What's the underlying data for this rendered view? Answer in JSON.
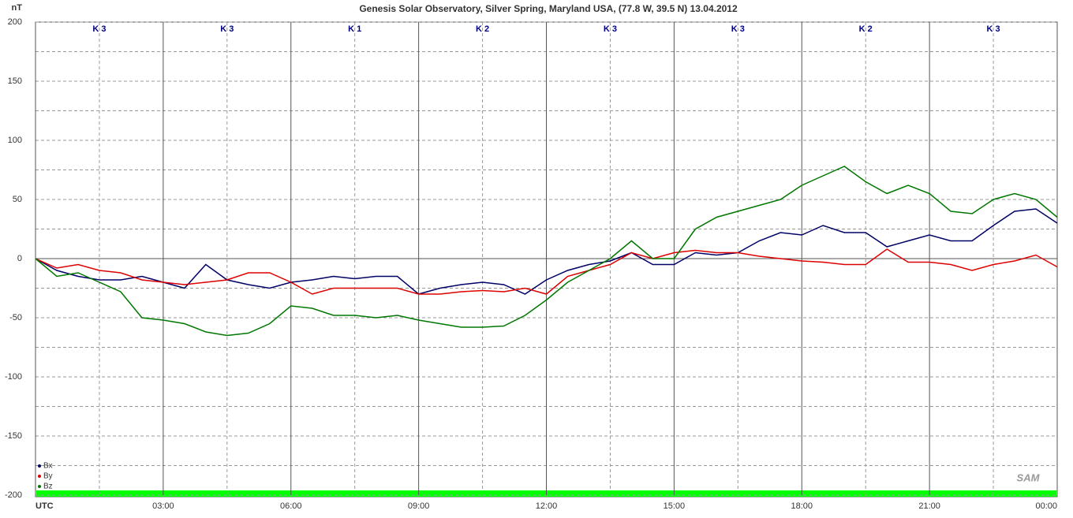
{
  "chart_data": {
    "type": "line",
    "title": "Genesis Solar Observatory, Silver Spring, Maryland USA, (77.8 W, 39.5 N)  13.04.2012",
    "y_label": "nT",
    "logo": "SAM",
    "xlim": [
      0,
      24
    ],
    "xticks": [
      {
        "value": 0,
        "label": "UTC"
      },
      {
        "value": 3,
        "label": "03:00"
      },
      {
        "value": 6,
        "label": "06:00"
      },
      {
        "value": 9,
        "label": "09:00"
      },
      {
        "value": 12,
        "label": "12:00"
      },
      {
        "value": 15,
        "label": "15:00"
      },
      {
        "value": 18,
        "label": "18:00"
      },
      {
        "value": 21,
        "label": "21:00"
      },
      {
        "value": 24,
        "label": "00:00"
      }
    ],
    "xminor": [
      1.5,
      4.5,
      7.5,
      10.5,
      13.5,
      16.5,
      19.5,
      22.5
    ],
    "ylim": [
      -200,
      200
    ],
    "yticks": [
      -200,
      -150,
      -100,
      -50,
      0,
      50,
      100,
      150,
      200
    ],
    "yminor": [
      -175,
      -125,
      -75,
      -25,
      25,
      75,
      125,
      175
    ],
    "k_index": [
      "K 3",
      "K 3",
      "K 1",
      "K 2",
      "K 3",
      "K 3",
      "K 2",
      "K 3"
    ],
    "x": [
      0,
      0.5,
      1,
      1.5,
      2,
      2.5,
      3,
      3.5,
      4,
      4.5,
      5,
      5.5,
      6,
      6.5,
      7,
      7.5,
      8,
      8.5,
      9,
      9.5,
      10,
      10.5,
      11,
      11.5,
      12,
      12.5,
      13,
      13.5,
      14,
      14.5,
      15,
      15.5,
      16,
      16.5,
      17,
      17.5,
      18,
      18.5,
      19,
      19.5,
      20,
      20.5,
      21,
      21.5,
      22,
      22.5,
      23,
      23.5,
      24
    ],
    "series": [
      {
        "name": "Bx",
        "color": "#000066",
        "values": [
          0,
          -10,
          -15,
          -18,
          -18,
          -15,
          -20,
          -25,
          -5,
          -18,
          -22,
          -25,
          -20,
          -18,
          -15,
          -17,
          -15,
          -15,
          -30,
          -25,
          -22,
          -20,
          -22,
          -30,
          -18,
          -10,
          -5,
          -2,
          5,
          -5,
          -5,
          5,
          3,
          5,
          15,
          22,
          20,
          28,
          22,
          22,
          10,
          15,
          20,
          15,
          15,
          28,
          40,
          42,
          30
        ]
      },
      {
        "name": "By",
        "color": "#dd0000",
        "values": [
          0,
          -8,
          -5,
          -10,
          -12,
          -18,
          -20,
          -22,
          -20,
          -18,
          -12,
          -12,
          -20,
          -30,
          -25,
          -25,
          -25,
          -25,
          -30,
          -30,
          -28,
          -27,
          -28,
          -25,
          -30,
          -15,
          -10,
          -5,
          5,
          0,
          5,
          7,
          5,
          5,
          2,
          0,
          -2,
          -3,
          -5,
          -5,
          8,
          -3,
          -3,
          -5,
          -10,
          -5,
          -2,
          3,
          -7
        ]
      },
      {
        "name": "Bz",
        "color": "#007700",
        "values": [
          0,
          -15,
          -12,
          -20,
          -28,
          -50,
          -52,
          -55,
          -62,
          -65,
          -63,
          -55,
          -40,
          -42,
          -48,
          -48,
          -50,
          -48,
          -52,
          -55,
          -58,
          -58,
          -57,
          -48,
          -35,
          -20,
          -10,
          0,
          15,
          0,
          0,
          25,
          35,
          40,
          45,
          50,
          62,
          70,
          78,
          65,
          55,
          62,
          55,
          40,
          38,
          50,
          55,
          50,
          35
        ]
      }
    ]
  }
}
